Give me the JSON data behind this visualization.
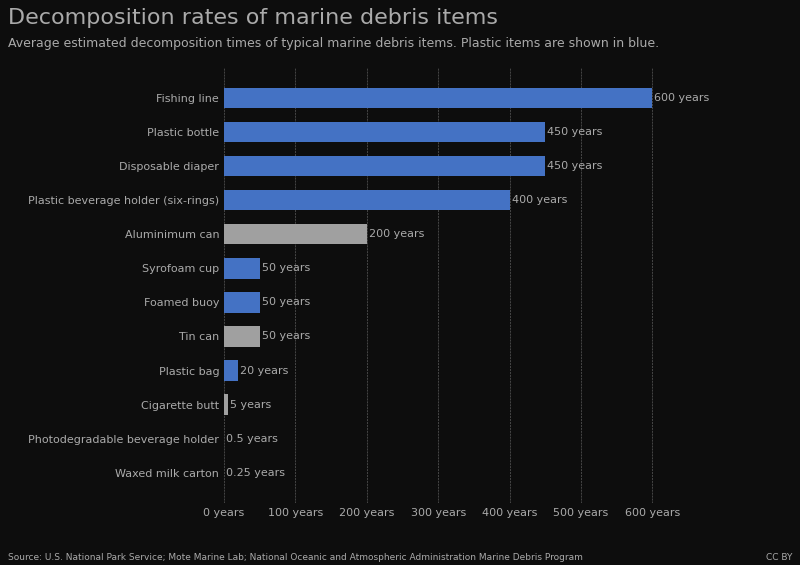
{
  "title": "Decomposition rates of marine debris items",
  "subtitle": "Average estimated decomposition times of typical marine debris items. Plastic items are shown in blue.",
  "source": "Source: U.S. National Park Service; Mote Marine Lab; National Oceanic and Atmospheric Administration Marine Debris Program",
  "cc": "CC BY",
  "categories": [
    "Fishing line",
    "Plastic bottle",
    "Disposable diaper",
    "Plastic beverage holder (six-rings)",
    "Aluminimum can",
    "Syrofoam cup",
    "Foamed buoy",
    "Tin can",
    "Plastic bag",
    "Cigarette butt",
    "Photodegradable beverage holder",
    "Waxed milk carton"
  ],
  "values": [
    600,
    450,
    450,
    400,
    200,
    50,
    50,
    50,
    20,
    5,
    0.5,
    0.25
  ],
  "colors": [
    "#4472C4",
    "#4472C4",
    "#4472C4",
    "#4472C4",
    "#A0A0A0",
    "#4472C4",
    "#4472C4",
    "#A0A0A0",
    "#4472C4",
    "#A0A0A0",
    "#A0A0A0",
    "#A0A0A0"
  ],
  "labels": [
    "600 years",
    "450 years",
    "450 years",
    "400 years",
    "200 years",
    "50 years",
    "50 years",
    "50 years",
    "20 years",
    "5 years",
    "0.5 years",
    "0.25 years"
  ],
  "xlim": [
    0,
    650
  ],
  "xticks": [
    0,
    100,
    200,
    300,
    400,
    500,
    600
  ],
  "xtick_labels": [
    "0 years",
    "100 years",
    "200 years",
    "300 years",
    "400 years",
    "500 years",
    "600 years"
  ],
  "background_color": "#0d0d0d",
  "text_color": "#aaaaaa",
  "grid_color": "#ffffff",
  "title_fontsize": 16,
  "subtitle_fontsize": 9,
  "label_fontsize": 8,
  "tick_fontsize": 8,
  "source_fontsize": 6.5
}
